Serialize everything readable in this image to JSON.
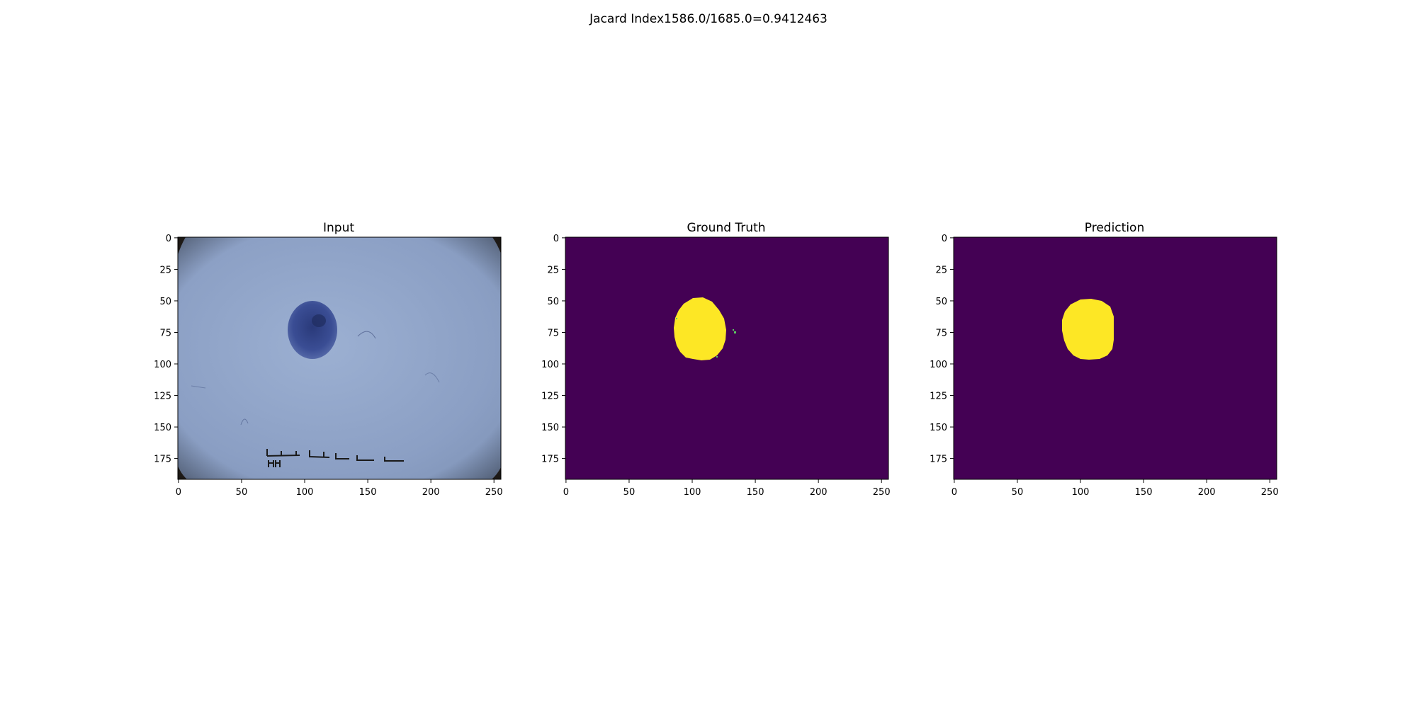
{
  "figure": {
    "suptitle": "Jacard Index1586.0/1685.0=0.9412463"
  },
  "panels": [
    {
      "title": "Input",
      "image": "dermoscopy-photo",
      "kind": "photo"
    },
    {
      "title": "Ground Truth",
      "image": "segmentation-mask",
      "kind": "mask"
    },
    {
      "title": "Prediction",
      "image": "segmentation-mask",
      "kind": "mask"
    }
  ],
  "axes": {
    "x_ticks": [
      "0",
      "50",
      "100",
      "150",
      "200",
      "250"
    ],
    "y_ticks": [
      "0",
      "25",
      "50",
      "75",
      "100",
      "125",
      "150",
      "175"
    ],
    "x_tick_values": [
      0,
      50,
      100,
      150,
      200,
      250
    ],
    "y_tick_values": [
      0,
      25,
      50,
      75,
      100,
      125,
      150,
      175
    ],
    "xlim": [
      -0.5,
      255.5
    ],
    "ylim": [
      191.5,
      -0.5
    ]
  },
  "colors": {
    "mask_background": "#440154",
    "mask_foreground": "#fde725",
    "skin": "#8fa3c6",
    "lesion": "#3b4f96"
  }
}
